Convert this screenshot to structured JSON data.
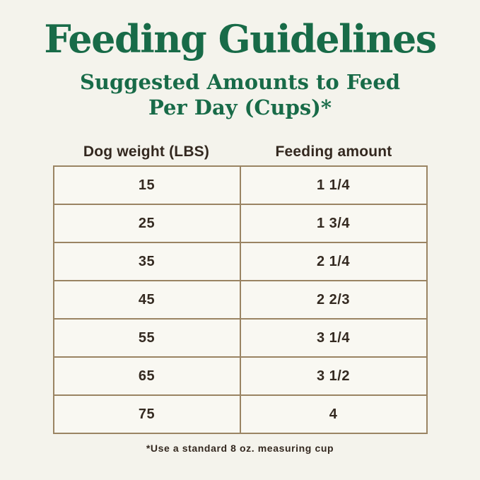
{
  "page": {
    "title": "Feeding Guidelines",
    "subtitle_line1": "Suggested Amounts to Feed",
    "subtitle_line2": "Per Day (Cups)*",
    "footnote": "*Use a standard 8 oz. measuring cup"
  },
  "chart_data": {
    "type": "table",
    "title": "Feeding Guidelines",
    "subtitle": "Suggested Amounts to Feed Per Day (Cups)*",
    "columns": [
      "Dog weight (LBS)",
      "Feeding amount"
    ],
    "rows": [
      [
        "15",
        "1 1/4"
      ],
      [
        "25",
        "1 3/4"
      ],
      [
        "35",
        "2 1/4"
      ],
      [
        "45",
        "2 2/3"
      ],
      [
        "55",
        "3 1/4"
      ],
      [
        "65",
        "3 1/2"
      ],
      [
        "75",
        "4"
      ]
    ],
    "footnote": "*Use a standard 8 oz. measuring cup"
  },
  "colors": {
    "background": "#f4f3ec",
    "cell_background": "#f9f8f2",
    "table_border": "#9a8463",
    "title_green": "#186b48",
    "text_dark": "#342a21"
  }
}
